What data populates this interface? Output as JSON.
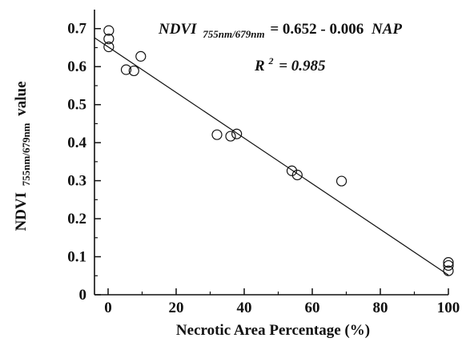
{
  "chart_data": {
    "type": "scatter",
    "title": "",
    "xlabel": "Necrotic Area Percentage (%)",
    "ylabel": {
      "main": "NDVI",
      "subscript": "755nm/679nm",
      "suffix": "value"
    },
    "xlim": [
      -4,
      100
    ],
    "ylim": [
      0,
      0.75
    ],
    "x_ticks": [
      0,
      20,
      40,
      60,
      80,
      100
    ],
    "x_tick_labels": [
      "0",
      "20",
      "40",
      "60",
      "80",
      "100"
    ],
    "y_ticks": [
      0,
      0.1,
      0.2,
      0.3,
      0.4,
      0.5,
      0.6,
      0.7
    ],
    "y_tick_labels": [
      "0",
      "0.1",
      "0.2",
      "0.3",
      "0.4",
      "0.5",
      "0.6",
      "0.7"
    ],
    "grid": false,
    "series": [
      {
        "marker": "open-circle",
        "points": [
          {
            "x": 0.2,
            "y": 0.695
          },
          {
            "x": 0.2,
            "y": 0.673
          },
          {
            "x": 0.2,
            "y": 0.652
          },
          {
            "x": 5.3,
            "y": 0.592
          },
          {
            "x": 7.6,
            "y": 0.589
          },
          {
            "x": 9.6,
            "y": 0.627
          },
          {
            "x": 32.0,
            "y": 0.421
          },
          {
            "x": 36.0,
            "y": 0.417
          },
          {
            "x": 37.8,
            "y": 0.423
          },
          {
            "x": 54.0,
            "y": 0.326
          },
          {
            "x": 55.6,
            "y": 0.315
          },
          {
            "x": 68.6,
            "y": 0.299
          },
          {
            "x": 100,
            "y": 0.085
          },
          {
            "x": 100,
            "y": 0.077
          },
          {
            "x": 100,
            "y": 0.063
          }
        ]
      }
    ],
    "fit_line": {
      "intercept": 0.652,
      "slope": -0.006,
      "x_range": [
        -4,
        100
      ]
    },
    "annotations": {
      "equation": {
        "lhs": "NDVI",
        "lhs_subscript": "755nm/679nm",
        "rhs": "= 0.652 - 0.006",
        "rhs_var": "NAP"
      },
      "r_squared": {
        "label": "R",
        "exponent": "2",
        "value": "= 0.985"
      }
    },
    "colors": {
      "ink": "#111111",
      "background": "#ffffff"
    }
  }
}
